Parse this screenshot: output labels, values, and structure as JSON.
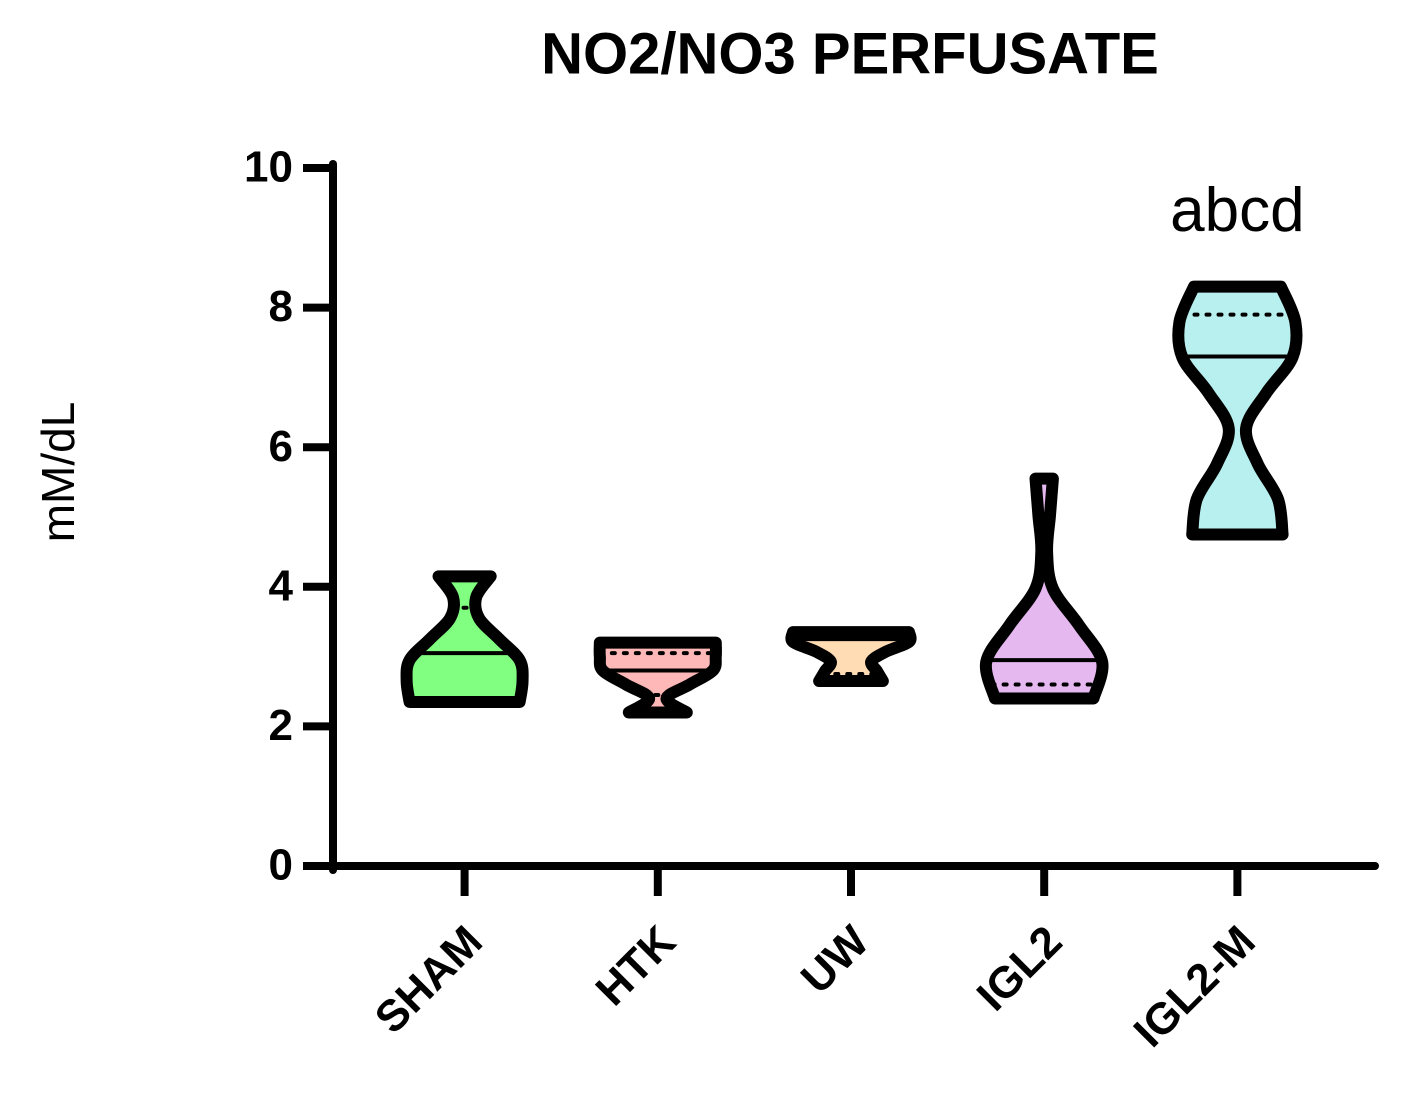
{
  "chart_data": {
    "type": "violin",
    "title": "NO2/NO3 PERFUSATE",
    "y_label": "mM/dL",
    "categories": [
      "SHAM",
      "HTK",
      "UW",
      "IGL2",
      "IGL2-M"
    ],
    "colors": [
      "#80ff80",
      "#ffb8b8",
      "#ffdcb4",
      "#e6b8f0",
      "#b8f0f0"
    ],
    "violins": [
      {
        "min": 2.35,
        "max": 4.15,
        "median": 3.05,
        "quartiles": [
          2.4,
          3.7
        ],
        "density": [
          0.95,
          1.0,
          0.95,
          0.6,
          0.25,
          0.2,
          0.45
        ]
      },
      {
        "min": 2.2,
        "max": 3.2,
        "median": 2.8,
        "quartiles": [
          2.45,
          3.05
        ],
        "density": [
          0.5,
          0.15,
          0.55,
          0.95,
          1.0,
          1.0
        ]
      },
      {
        "min": 2.65,
        "max": 3.35,
        "median": 3.25,
        "quartiles": [
          2.75,
          3.3
        ],
        "density": [
          0.55,
          0.45,
          0.35,
          0.6,
          1.0,
          1.0
        ]
      },
      {
        "min": 2.4,
        "max": 5.55,
        "median": 2.95,
        "quartiles": [
          2.6
        ],
        "density": [
          0.85,
          1.0,
          0.6,
          0.15,
          0.05,
          0.1,
          0.15
        ]
      },
      {
        "min": 4.75,
        "max": 8.3,
        "median": 7.3,
        "quartiles": [
          4.8,
          7.9
        ],
        "density": [
          0.78,
          0.7,
          0.35,
          0.15,
          0.5,
          0.95,
          1.0,
          0.75
        ]
      }
    ],
    "annotations": [
      {
        "category": "IGL2-M",
        "text": "abcd"
      }
    ],
    "ylim": [
      0,
      10
    ],
    "yticks": [
      0,
      2,
      4,
      6,
      8,
      10
    ]
  }
}
